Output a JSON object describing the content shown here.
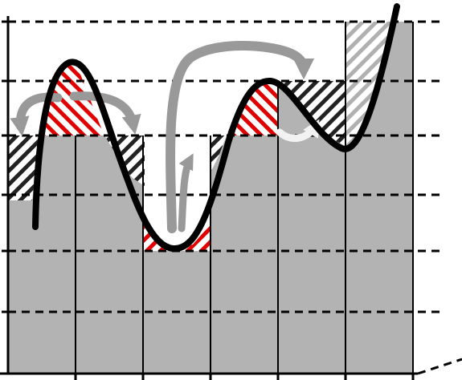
{
  "colors": {
    "bar_fill": "#b3b3b3",
    "hatch_red": "#e00000",
    "hatch_dark": "#222222",
    "hatch_light": "#b0b0b0",
    "curve": "#000000",
    "arrow_gray": "#999999",
    "arrow_white": "#f2f2f2",
    "grid": "#000000"
  },
  "bar_levels": [
    4,
    4,
    2,
    4,
    5,
    6
  ],
  "level_count": 6,
  "arrows": [
    {
      "name": "arrow-peak-left",
      "color": "arrow_gray"
    },
    {
      "name": "arrow-peak-right",
      "color": "arrow_gray"
    },
    {
      "name": "arrow-valley-to-right",
      "color": "arrow_gray"
    },
    {
      "name": "arrow-valley-small",
      "color": "arrow_gray"
    },
    {
      "name": "arrow-dip-white",
      "color": "arrow_white"
    }
  ]
}
